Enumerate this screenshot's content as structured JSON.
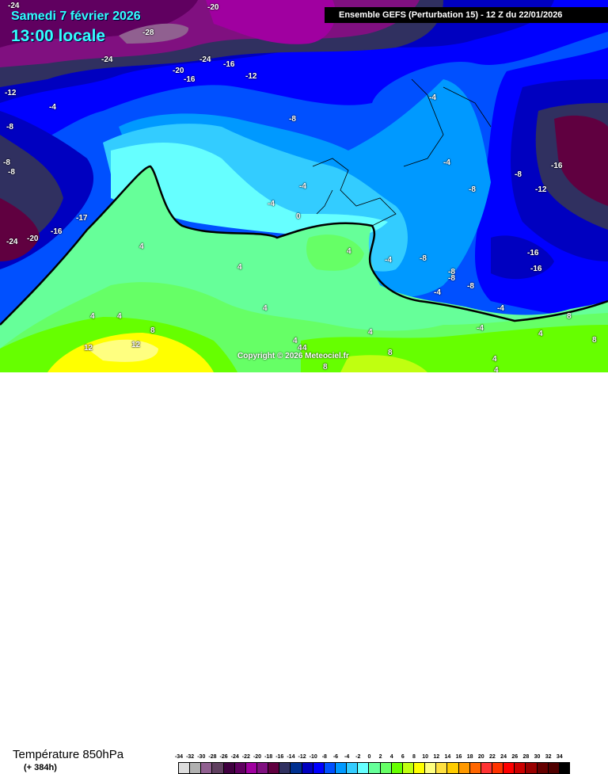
{
  "header": {
    "date": "Samedi 7 février 2026",
    "time": "13:00 locale",
    "model": "Ensemble GEFS  (Perturbation 15)  -  12 Z du 22/01/2026"
  },
  "copyright": "Copyright © 2026 Meteociel.fr",
  "footer": {
    "parameter": "Température 850hPa",
    "lead": "(+ 384h)"
  },
  "legend": [
    {
      "v": "-34",
      "c": "#dddddd"
    },
    {
      "v": "-32",
      "c": "#b0b0b0"
    },
    {
      "v": "-30",
      "c": "#906090"
    },
    {
      "v": "-28",
      "c": "#604060"
    },
    {
      "v": "-26",
      "c": "#400040"
    },
    {
      "v": "-24",
      "c": "#600060"
    },
    {
      "v": "-22",
      "c": "#a000a0"
    },
    {
      "v": "-20",
      "c": "#801080"
    },
    {
      "v": "-18",
      "c": "#600040"
    },
    {
      "v": "-16",
      "c": "#303060"
    },
    {
      "v": "-14",
      "c": "#003090"
    },
    {
      "v": "-12",
      "c": "#0000c0"
    },
    {
      "v": "-10",
      "c": "#0000ff"
    },
    {
      "v": "-8",
      "c": "#0050ff"
    },
    {
      "v": "-6",
      "c": "#0099ff"
    },
    {
      "v": "-4",
      "c": "#33ccff"
    },
    {
      "v": "-2",
      "c": "#66ffff"
    },
    {
      "v": "0",
      "c": "#66ff99"
    },
    {
      "v": "2",
      "c": "#66ff66"
    },
    {
      "v": "4",
      "c": "#66ff00"
    },
    {
      "v": "6",
      "c": "#c0ff10"
    },
    {
      "v": "8",
      "c": "#ffff00"
    },
    {
      "v": "10",
      "c": "#ffff80"
    },
    {
      "v": "12",
      "c": "#ffe040"
    },
    {
      "v": "14",
      "c": "#ffcc00"
    },
    {
      "v": "16",
      "c": "#ff9900"
    },
    {
      "v": "18",
      "c": "#ff6600"
    },
    {
      "v": "20",
      "c": "#ff3333"
    },
    {
      "v": "22",
      "c": "#ff3300"
    },
    {
      "v": "24",
      "c": "#ff0000"
    },
    {
      "v": "26",
      "c": "#cc0000"
    },
    {
      "v": "28",
      "c": "#990000"
    },
    {
      "v": "30",
      "c": "#660000"
    },
    {
      "v": "32",
      "c": "#500000"
    },
    {
      "v": "34",
      "c": "#000000"
    }
  ],
  "contour_labels": [
    "-24",
    "-20",
    "-28",
    "-24",
    "-24",
    "-20",
    "-16",
    "-16",
    "-12",
    "-12",
    "-4",
    "-8",
    "-8",
    "-8",
    "-8",
    "-4",
    "-4",
    "-4",
    "-8",
    "-8",
    "-12",
    "-16",
    "-17",
    "-24",
    "-20",
    "-16",
    "-4",
    "0",
    "4",
    "4",
    "4",
    "-4",
    "-8",
    "-4",
    "-8",
    "-8",
    "-8",
    "-16",
    "-16",
    "-4",
    "-4",
    "4",
    "4",
    "4",
    "8",
    "12",
    "12",
    "4",
    "4",
    "4",
    "8",
    "4",
    "8",
    "4",
    "8",
    "4",
    "8",
    "4"
  ]
}
